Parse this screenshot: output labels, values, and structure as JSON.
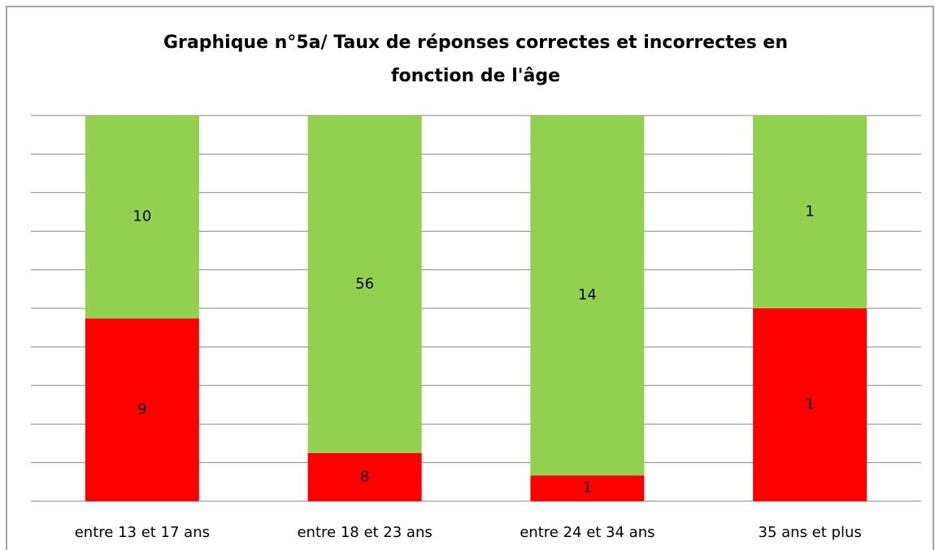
{
  "chart_data": {
    "type": "bar",
    "stacked": "percent",
    "title": [
      "Graphique n°5a/ Taux de réponses correctes et incorrectes en",
      "fonction de l'âge"
    ],
    "categories": [
      "entre 13 et 17 ans",
      "entre 18 et 23 ans",
      "entre 24 et 34 ans",
      "35 ans et plus"
    ],
    "series": [
      {
        "color": "#ff0000",
        "values": [
          9,
          8,
          1,
          1
        ]
      },
      {
        "color": "#92d050",
        "values": [
          10,
          56,
          14,
          1
        ]
      }
    ],
    "ylim": [
      0,
      100
    ],
    "yticks": [
      0,
      10,
      20,
      30,
      40,
      50,
      60,
      70,
      80,
      90,
      100
    ],
    "grid": true
  }
}
